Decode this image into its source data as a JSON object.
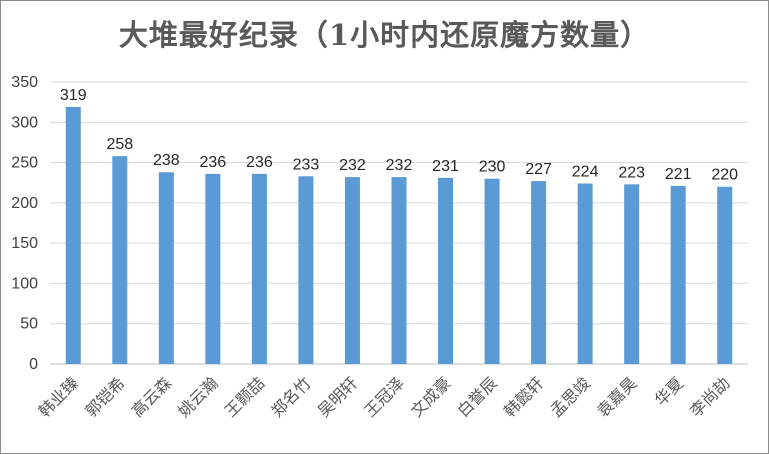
{
  "chart_data": {
    "type": "bar",
    "title": "大堆最好纪录（1小时内还原魔方数量）",
    "categories": [
      "韩业臻",
      "郭铠希",
      "高云森",
      "姚云瀚",
      "王颢喆",
      "郑名竹",
      "吴明轩",
      "王冠泽",
      "文成豪",
      "白誉辰",
      "韩懿轩",
      "孟思竣",
      "袁嘉昊",
      "华夏",
      "李尚劼"
    ],
    "values": [
      319,
      258,
      238,
      236,
      236,
      233,
      232,
      232,
      231,
      230,
      227,
      224,
      223,
      221,
      220
    ],
    "ylim": [
      0,
      350
    ],
    "yticks": [
      0,
      50,
      100,
      150,
      200,
      250,
      300,
      350
    ],
    "grid": true,
    "bar_color": "#5b9bd5",
    "grid_color": "#d9d9d9"
  }
}
